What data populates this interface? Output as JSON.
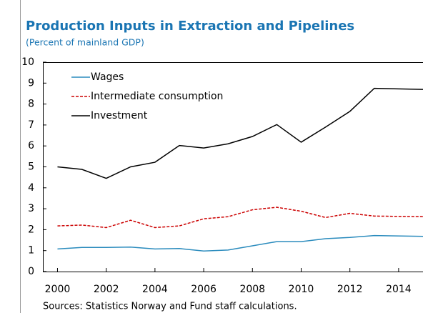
{
  "chart_data": {
    "type": "line",
    "title": "Production Inputs in Extraction and Pipelines",
    "subtitle": "(Percent of mainland GDP)",
    "source": "Sources: Statistics Norway and Fund staff calculations.",
    "x": [
      2000,
      2001,
      2002,
      2003,
      2004,
      2005,
      2006,
      2007,
      2008,
      2009,
      2010,
      2011,
      2012,
      2013,
      2015
    ],
    "series": [
      {
        "name": "Wages",
        "color": "#2a8bbd",
        "dash": "solid",
        "values": [
          1.08,
          1.15,
          1.15,
          1.17,
          1.08,
          1.1,
          0.98,
          1.03,
          1.23,
          1.43,
          1.43,
          1.57,
          1.63,
          1.72,
          1.68
        ]
      },
      {
        "name": "Intermediate consumption",
        "color": "#cc0000",
        "dash": "dashed",
        "values": [
          2.18,
          2.22,
          2.1,
          2.45,
          2.1,
          2.18,
          2.52,
          2.62,
          2.95,
          3.07,
          2.88,
          2.58,
          2.78,
          2.65,
          2.62
        ]
      },
      {
        "name": "Investment",
        "color": "#000000",
        "dash": "solid",
        "values": [
          5.0,
          4.88,
          4.45,
          5.0,
          5.22,
          6.02,
          5.9,
          6.1,
          6.45,
          7.02,
          6.18,
          6.9,
          7.65,
          8.75,
          8.7
        ]
      }
    ],
    "xlim": [
      1999.4,
      2015
    ],
    "xticks": [
      2000,
      2002,
      2004,
      2006,
      2008,
      2010,
      2012,
      2014
    ],
    "ylim": [
      0,
      10
    ],
    "yticks": [
      0,
      1,
      2,
      3,
      4,
      5,
      6,
      7,
      8,
      9,
      10
    ],
    "legend": "top-left"
  }
}
